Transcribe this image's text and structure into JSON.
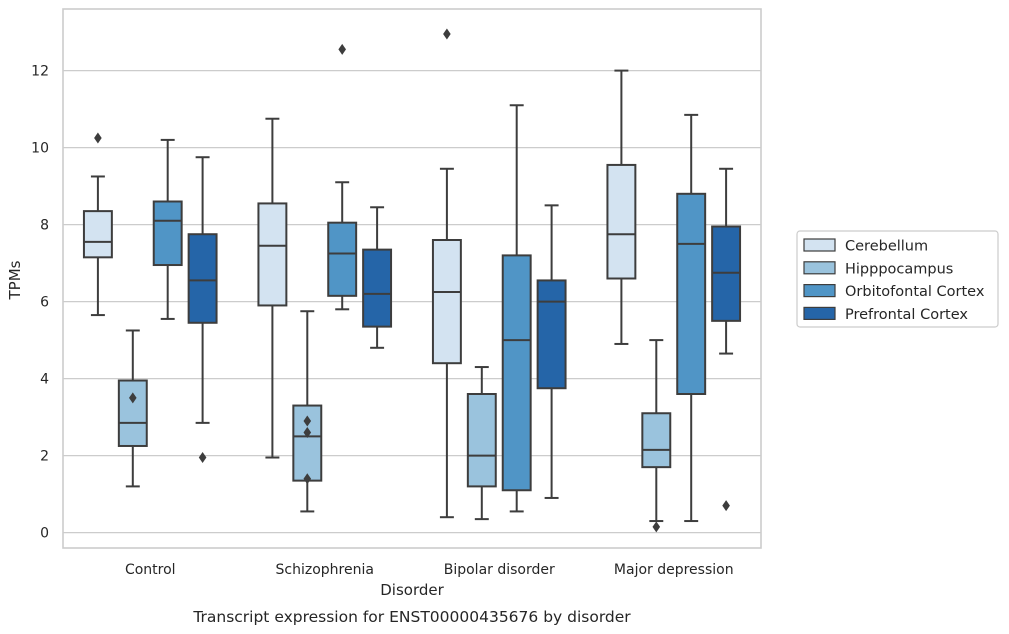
{
  "caption": "Transcript expression for ENST00000435676 by disorder",
  "chart_data": {
    "type": "box",
    "xlabel": "Disorder",
    "ylabel": "TPMs",
    "ylim": [
      -0.4,
      13.6
    ],
    "yticks": [
      0,
      2,
      4,
      6,
      8,
      10,
      12
    ],
    "grid": "horizontal",
    "legend_position": "right",
    "categories": [
      "Control",
      "Schizophrenia",
      "Bipolar disorder",
      "Major depression"
    ],
    "series": [
      {
        "name": "Cerebellum",
        "color": "#d3e3f1",
        "boxes": [
          {
            "whisker_low": 5.65,
            "q1": 7.15,
            "median": 7.55,
            "q3": 8.35,
            "whisker_high": 9.25,
            "outliers": [
              10.25
            ]
          },
          {
            "whisker_low": 1.95,
            "q1": 5.9,
            "median": 7.45,
            "q3": 8.55,
            "whisker_high": 10.75,
            "outliers": []
          },
          {
            "whisker_low": 0.4,
            "q1": 4.4,
            "median": 6.25,
            "q3": 7.6,
            "whisker_high": 9.45,
            "outliers": [
              12.95
            ]
          },
          {
            "whisker_low": 4.9,
            "q1": 6.6,
            "median": 7.75,
            "q3": 9.55,
            "whisker_high": 12.0,
            "outliers": []
          }
        ]
      },
      {
        "name": "Hipppocampus",
        "color": "#9ac3dd",
        "boxes": [
          {
            "whisker_low": 1.2,
            "q1": 2.25,
            "median": 2.85,
            "q3": 3.95,
            "whisker_high": 5.25,
            "outliers": [
              3.5
            ]
          },
          {
            "whisker_low": 0.55,
            "q1": 1.35,
            "median": 2.5,
            "q3": 3.3,
            "whisker_high": 5.75,
            "outliers": [
              2.9,
              2.6,
              1.4
            ]
          },
          {
            "whisker_low": 0.35,
            "q1": 1.2,
            "median": 2.0,
            "q3": 3.6,
            "whisker_high": 4.3,
            "outliers": []
          },
          {
            "whisker_low": 0.3,
            "q1": 1.7,
            "median": 2.15,
            "q3": 3.1,
            "whisker_high": 5.0,
            "outliers": [
              0.15
            ]
          }
        ]
      },
      {
        "name": "Orbitofontal Cortex",
        "color": "#5095c6",
        "boxes": [
          {
            "whisker_low": 5.55,
            "q1": 6.95,
            "median": 8.1,
            "q3": 8.6,
            "whisker_high": 10.2,
            "outliers": []
          },
          {
            "whisker_low": 5.8,
            "q1": 6.15,
            "median": 7.25,
            "q3": 8.05,
            "whisker_high": 9.1,
            "outliers": [
              12.55
            ]
          },
          {
            "whisker_low": 0.55,
            "q1": 1.1,
            "median": 5.0,
            "q3": 7.2,
            "whisker_high": 11.1,
            "outliers": []
          },
          {
            "whisker_low": 0.3,
            "q1": 3.6,
            "median": 7.5,
            "q3": 8.8,
            "whisker_high": 10.85,
            "outliers": []
          }
        ]
      },
      {
        "name": "Prefrontal Cortex",
        "color": "#2565a8",
        "boxes": [
          {
            "whisker_low": 2.85,
            "q1": 5.45,
            "median": 6.55,
            "q3": 7.75,
            "whisker_high": 9.75,
            "outliers": [
              1.95
            ]
          },
          {
            "whisker_low": 4.8,
            "q1": 5.35,
            "median": 6.2,
            "q3": 7.35,
            "whisker_high": 8.45,
            "outliers": []
          },
          {
            "whisker_low": 0.9,
            "q1": 3.75,
            "median": 6.0,
            "q3": 6.55,
            "whisker_high": 8.5,
            "outliers": []
          },
          {
            "whisker_low": 4.65,
            "q1": 5.5,
            "median": 6.75,
            "q3": 7.95,
            "whisker_high": 9.45,
            "outliers": [
              0.7
            ]
          }
        ]
      }
    ]
  }
}
